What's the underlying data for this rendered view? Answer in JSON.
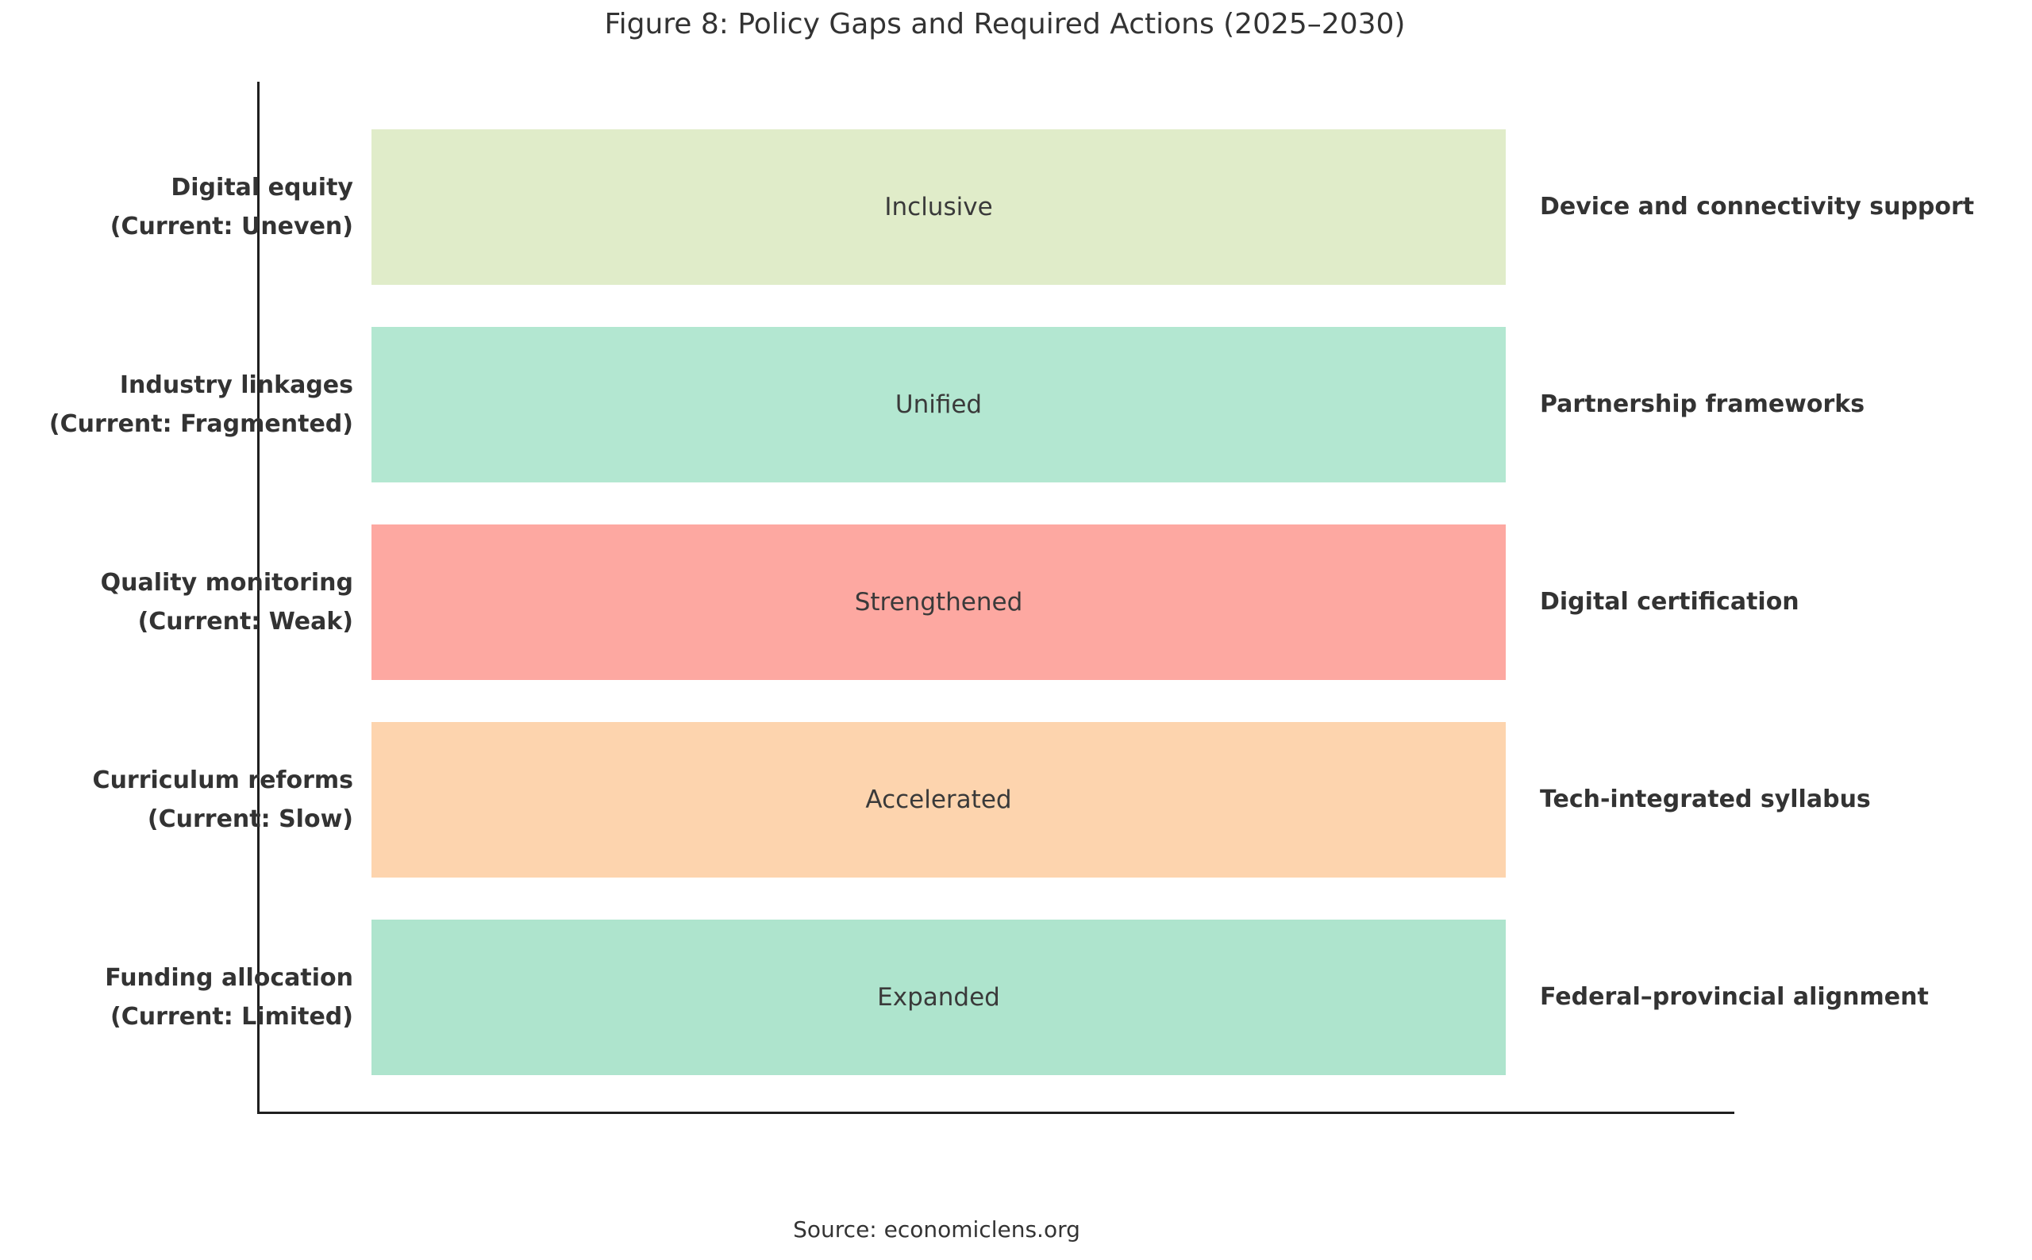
{
  "figure": {
    "title": "Figure 8: Policy Gaps and Required Actions (2025–2030)",
    "source": "Source: economiclens.org"
  },
  "chart_data": {
    "type": "bar",
    "orientation": "horizontal",
    "title": "Figure 8: Policy Gaps and Required Actions (2025–2030)",
    "xlim": [
      0,
      1
    ],
    "grid": false,
    "legend": "none",
    "axis_color": "#1f1f1f",
    "note": "All five bars span the full equal length (value 1 of 1); chart is qualitative, mapping current policy gaps to required future states and actions.",
    "rows": [
      {
        "category_line1": "Digital equity",
        "category_line2": "(Current: Uneven)",
        "bar_label": "Inclusive",
        "action_label": "Device and connectivity support",
        "value": 1,
        "color": "#e0ecc9"
      },
      {
        "category_line1": "Industry linkages",
        "category_line2": "(Current: Fragmented)",
        "bar_label": "Unified",
        "action_label": "Partnership frameworks",
        "value": 1,
        "color": "#b3e7d1"
      },
      {
        "category_line1": "Quality monitoring",
        "category_line2": "(Current: Weak)",
        "bar_label": "Strengthened",
        "action_label": "Digital certification",
        "value": 1,
        "color": "#fda8a1"
      },
      {
        "category_line1": "Curriculum reforms",
        "category_line2": "(Current: Slow)",
        "bar_label": "Accelerated",
        "action_label": "Tech-integrated syllabus",
        "value": 1,
        "color": "#fdd4ae"
      },
      {
        "category_line1": "Funding allocation",
        "category_line2": "(Current: Limited)",
        "bar_label": "Expanded",
        "action_label": "Federal–provincial alignment",
        "value": 1,
        "color": "#aee4cd"
      }
    ]
  }
}
